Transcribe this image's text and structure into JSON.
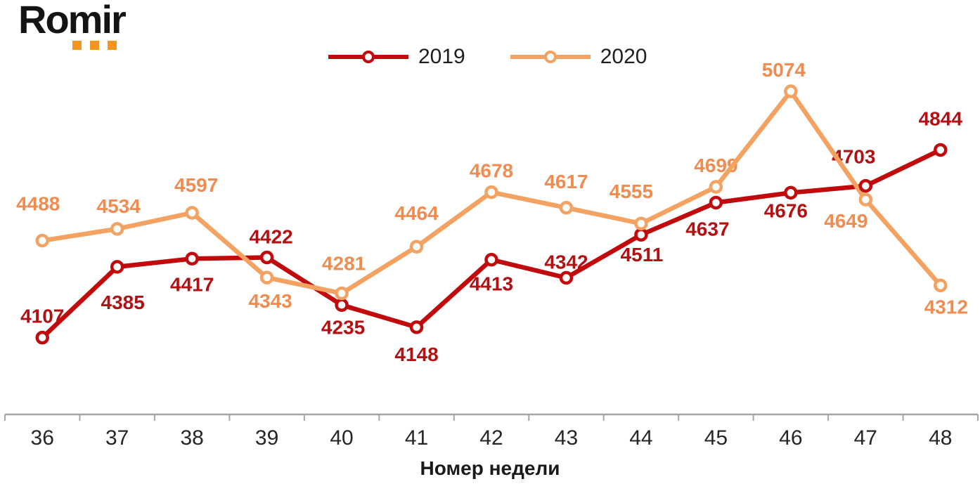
{
  "logo": {
    "text": "Romir",
    "dot_color": "#F7941D"
  },
  "chart_data": {
    "type": "line",
    "title": "",
    "xlabel": "Номер недели",
    "ylabel": "",
    "grid": false,
    "legend_position": "top-center",
    "categories": [
      36,
      37,
      38,
      39,
      40,
      41,
      42,
      43,
      44,
      45,
      46,
      47,
      48
    ],
    "ylim": [
      3800,
      5190
    ],
    "series": [
      {
        "name": "2019",
        "color": "#C00A0C",
        "label_color": "#B21114",
        "values": [
          4107,
          4385,
          4417,
          4422,
          4235,
          4148,
          4413,
          4342,
          4511,
          4637,
          4676,
          4703,
          4844
        ],
        "label_offsets": [
          [
            0,
            -31
          ],
          [
            8,
            50
          ],
          [
            0,
            36
          ],
          [
            6,
            -30
          ],
          [
            2,
            31
          ],
          [
            0,
            38
          ],
          [
            0,
            34
          ],
          [
            0,
            -23
          ],
          [
            1,
            28
          ],
          [
            -12,
            37
          ],
          [
            -7,
            25
          ],
          [
            -17,
            -42
          ],
          [
            0,
            -45
          ]
        ]
      },
      {
        "name": "2020",
        "color": "#F3A261",
        "label_color": "#F08C50",
        "values": [
          4488,
          4534,
          4597,
          4343,
          4281,
          4464,
          4678,
          4617,
          4555,
          4699,
          5074,
          4649,
          4312
        ],
        "label_offsets": [
          [
            -6,
            -53
          ],
          [
            2,
            -33
          ],
          [
            6,
            -40
          ],
          [
            5,
            33
          ],
          [
            3,
            -43
          ],
          [
            0,
            -48
          ],
          [
            0,
            -31
          ],
          [
            0,
            -38
          ],
          [
            -14,
            -46
          ],
          [
            0,
            -31
          ],
          [
            -10,
            -31
          ],
          [
            -28,
            30
          ],
          [
            8,
            30
          ]
        ]
      }
    ]
  }
}
